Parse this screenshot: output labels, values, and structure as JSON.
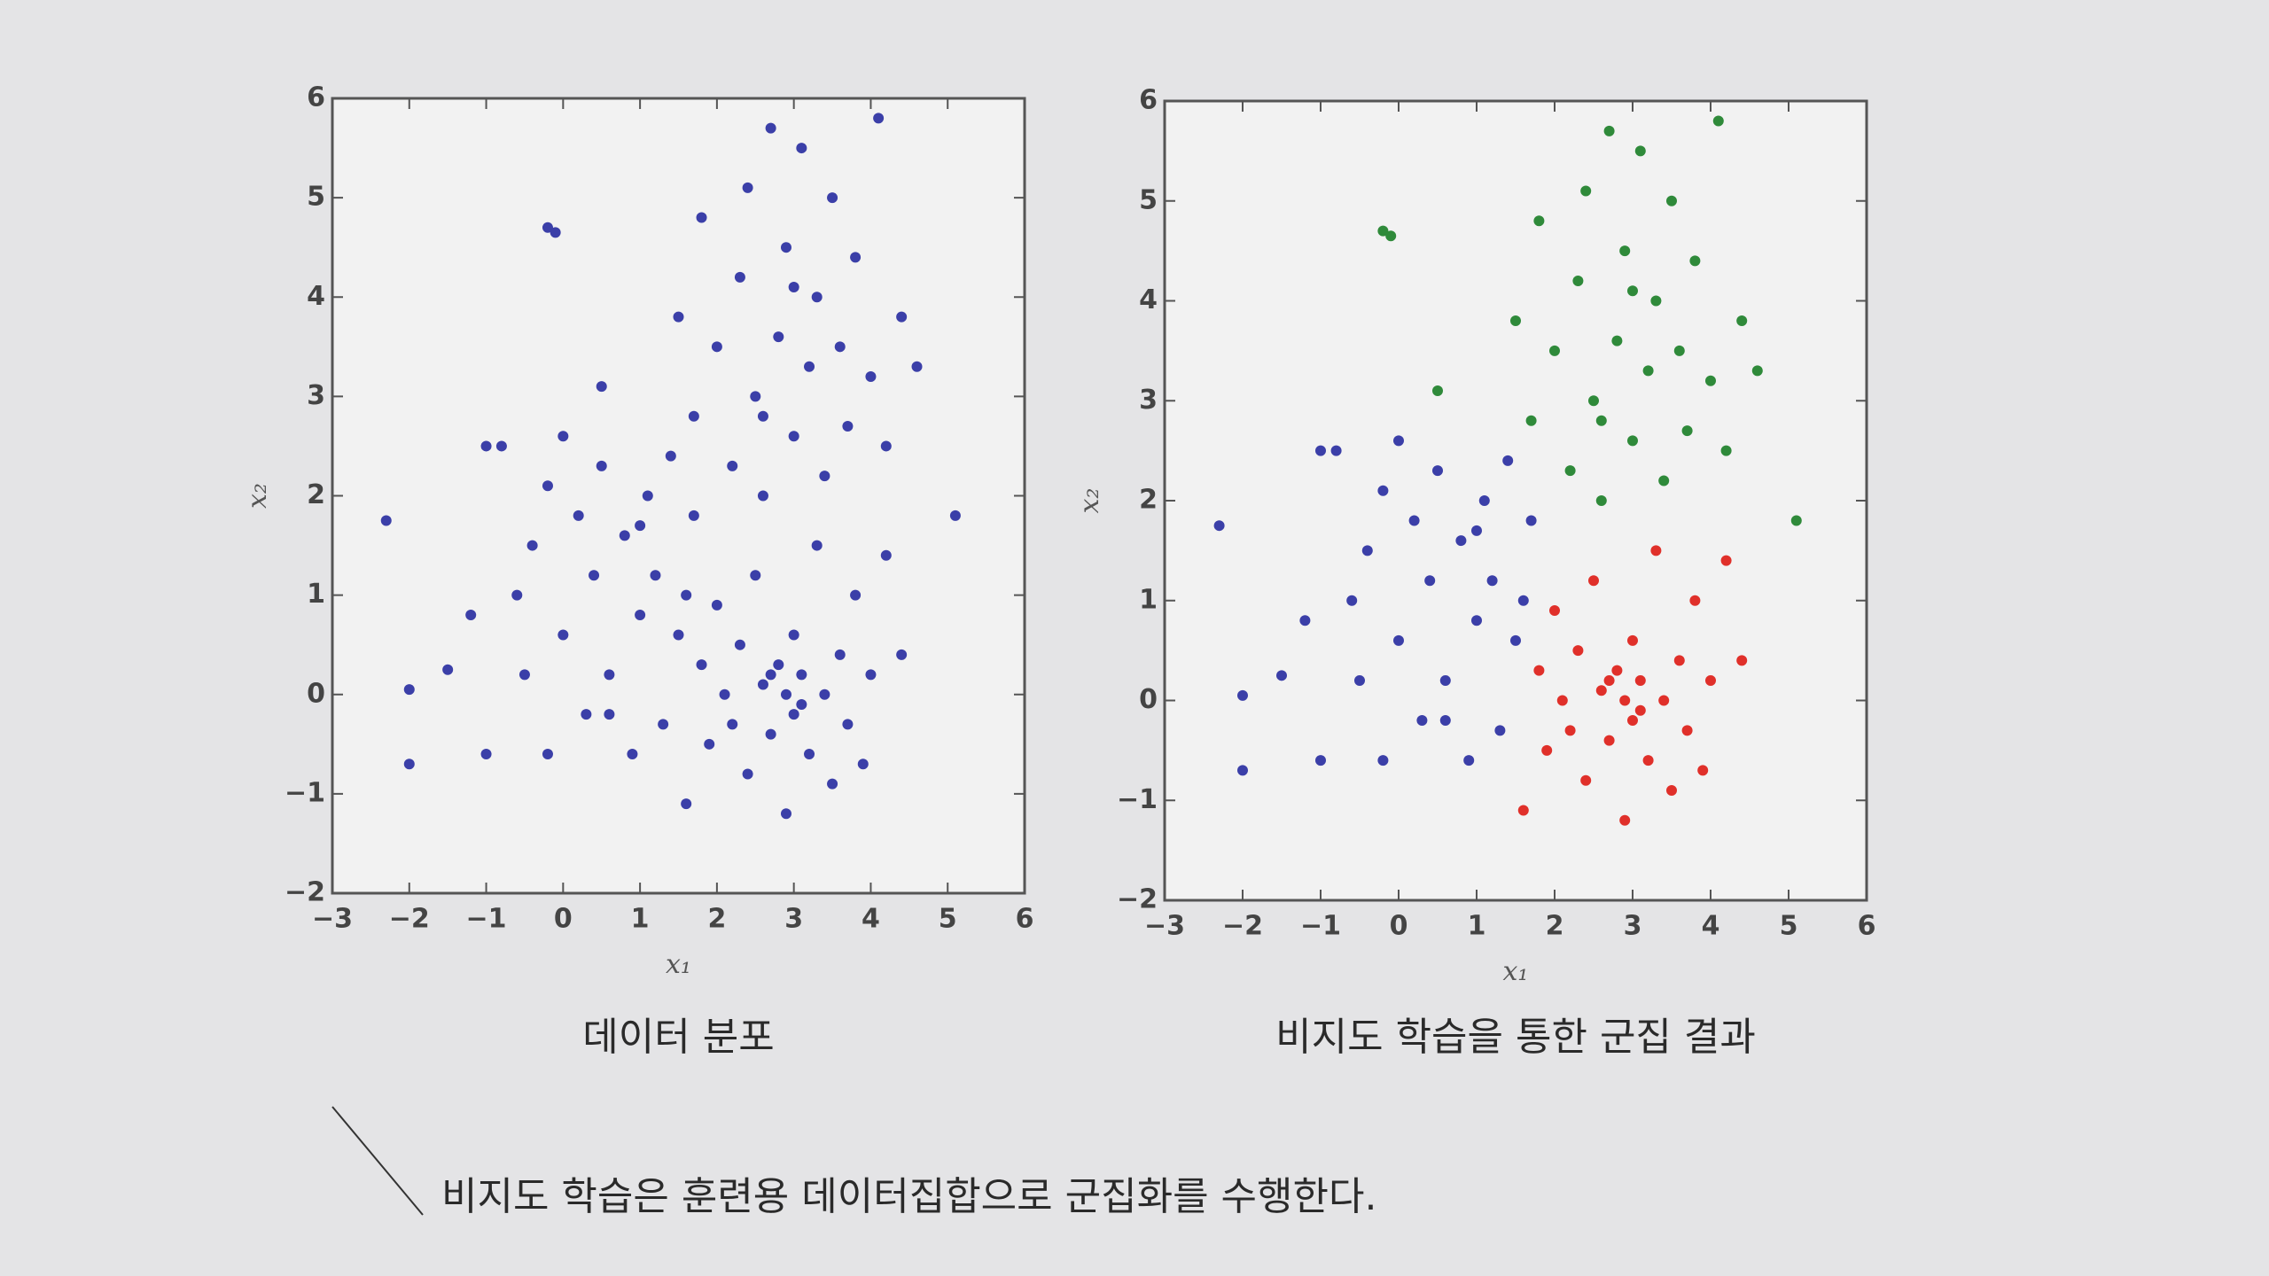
{
  "chart_data": [
    {
      "type": "scatter",
      "title": "데이터 분포",
      "xlabel": "x₁",
      "ylabel": "x₂",
      "xlim": [
        -3,
        6
      ],
      "ylim": [
        -2,
        6
      ],
      "xticks": [
        {
          "value": -3,
          "label": "−3"
        },
        {
          "value": -2,
          "label": "−2"
        },
        {
          "value": -1,
          "label": "−1"
        },
        0,
        1,
        2,
        3,
        4,
        5,
        6
      ],
      "yticks": [
        {
          "value": -2,
          "label": "−2"
        },
        {
          "value": -1,
          "label": "−1"
        },
        0,
        1,
        2,
        3,
        4,
        5,
        6
      ],
      "grid": false,
      "series": [
        {
          "color": "#3b3fa8",
          "x": [
            -2.3,
            -2,
            -2,
            -1.5,
            -1.2,
            -1,
            -1,
            -0.8,
            -0.6,
            -0.5,
            -0.4,
            -0.2,
            -0.2,
            0,
            0,
            0.2,
            0.3,
            0.4,
            0.5,
            0.6,
            0.8,
            0.9,
            1.0,
            1.1,
            1.2,
            1.3,
            1.4,
            1.5,
            1.6,
            1.7,
            0.6,
            1.0,
            -0.2,
            -0.1,
            0.5,
            1.5,
            1.7,
            1.8,
            2.0,
            2.2,
            2.3,
            2.4,
            2.5,
            2.6,
            2.7,
            2.8,
            2.9,
            3.0,
            3.1,
            3.2,
            3.3,
            3.4,
            3.5,
            3.6,
            3.7,
            3.8,
            4.0,
            4.1,
            4.2,
            4.4,
            4.6,
            5.1,
            3.0,
            2.6,
            1.6,
            1.8,
            1.9,
            2.0,
            2.1,
            2.2,
            2.3,
            2.4,
            2.5,
            2.6,
            2.7,
            2.8,
            2.9,
            2.9,
            3.0,
            3.0,
            3.1,
            3.2,
            3.3,
            3.4,
            3.5,
            3.6,
            3.7,
            3.8,
            3.9,
            4.0,
            4.2,
            4.4,
            2.7,
            3.1
          ],
          "values": [
            1.75,
            0.05,
            -0.7,
            0.25,
            0.8,
            2.5,
            -0.6,
            2.5,
            1.0,
            0.2,
            1.5,
            2.1,
            -0.6,
            2.6,
            0.6,
            1.8,
            -0.2,
            1.2,
            2.3,
            0.2,
            1.6,
            -0.6,
            0.8,
            2.0,
            1.2,
            -0.3,
            2.4,
            0.6,
            1.0,
            1.8,
            -0.2,
            1.7,
            4.7,
            4.65,
            3.1,
            3.8,
            2.8,
            4.8,
            3.5,
            2.3,
            4.2,
            5.1,
            3.0,
            2.0,
            5.7,
            3.6,
            4.5,
            2.6,
            5.5,
            3.3,
            4.0,
            2.2,
            5.0,
            3.5,
            2.7,
            4.4,
            3.2,
            5.8,
            2.5,
            3.8,
            3.3,
            1.8,
            4.1,
            2.8,
            -1.1,
            0.3,
            -0.5,
            0.9,
            0,
            -0.3,
            0.5,
            -0.8,
            1.2,
            0.1,
            -0.4,
            0.3,
            -1.2,
            0,
            0.6,
            -0.2,
            0.2,
            -0.6,
            1.5,
            0,
            -0.9,
            0.4,
            -0.3,
            1.0,
            -0.7,
            0.2,
            1.4,
            0.4,
            0.2,
            -0.1
          ]
        }
      ]
    },
    {
      "type": "scatter",
      "title": "비지도 학습을 통한 군집 결과",
      "xlabel": "x₁",
      "ylabel": "x₂",
      "xlim": [
        -3,
        6
      ],
      "ylim": [
        -2,
        6
      ],
      "xticks": [
        {
          "value": -3,
          "label": "−3"
        },
        {
          "value": -2,
          "label": "−2"
        },
        {
          "value": -1,
          "label": "−1"
        },
        0,
        1,
        2,
        3,
        4,
        5,
        6
      ],
      "yticks": [
        {
          "value": -2,
          "label": "−2"
        },
        {
          "value": -1,
          "label": "−1"
        },
        0,
        1,
        2,
        3,
        4,
        5,
        6
      ],
      "grid": false,
      "series": [
        {
          "color": "#3b3fa8",
          "x": [
            -2.3,
            -2,
            -2,
            -1.5,
            -1.2,
            -1,
            -1,
            -0.8,
            -0.6,
            -0.5,
            -0.4,
            -0.2,
            -0.2,
            0,
            0,
            0.2,
            0.3,
            0.4,
            0.5,
            0.6,
            0.8,
            0.9,
            1.0,
            1.1,
            1.2,
            1.3,
            1.4,
            1.5,
            1.6,
            1.7,
            0.6,
            1.0
          ],
          "values": [
            1.75,
            0.05,
            -0.7,
            0.25,
            0.8,
            2.5,
            -0.6,
            2.5,
            1.0,
            0.2,
            1.5,
            2.1,
            -0.6,
            2.6,
            0.6,
            1.8,
            -0.2,
            1.2,
            2.3,
            0.2,
            1.6,
            -0.6,
            0.8,
            2.0,
            1.2,
            -0.3,
            2.4,
            0.6,
            1.0,
            1.8,
            -0.2,
            1.7
          ]
        },
        {
          "color": "#2f8a3a",
          "x": [
            -0.2,
            -0.1,
            0.5,
            1.5,
            1.7,
            1.8,
            2.0,
            2.2,
            2.3,
            2.4,
            2.5,
            2.6,
            2.7,
            2.8,
            2.9,
            3.0,
            3.1,
            3.2,
            3.3,
            3.4,
            3.5,
            3.6,
            3.7,
            3.8,
            4.0,
            4.1,
            4.2,
            4.4,
            4.6,
            5.1,
            3.0,
            2.6
          ],
          "values": [
            4.7,
            4.65,
            3.1,
            3.8,
            2.8,
            4.8,
            3.5,
            2.3,
            4.2,
            5.1,
            3.0,
            2.0,
            5.7,
            3.6,
            4.5,
            2.6,
            5.5,
            3.3,
            4.0,
            2.2,
            5.0,
            3.5,
            2.7,
            4.4,
            3.2,
            5.8,
            2.5,
            3.8,
            3.3,
            1.8,
            4.1,
            2.8
          ]
        },
        {
          "color": "#e0302a",
          "x": [
            1.6,
            1.8,
            1.9,
            2.0,
            2.1,
            2.2,
            2.3,
            2.4,
            2.5,
            2.6,
            2.7,
            2.8,
            2.9,
            2.9,
            3.0,
            3.0,
            3.1,
            3.2,
            3.3,
            3.4,
            3.5,
            3.6,
            3.7,
            3.8,
            3.9,
            4.0,
            4.2,
            4.4,
            2.7,
            3.1
          ],
          "values": [
            -1.1,
            0.3,
            -0.5,
            0.9,
            0,
            -0.3,
            0.5,
            -0.8,
            1.2,
            0.1,
            -0.4,
            0.3,
            -1.2,
            0,
            0.6,
            -0.2,
            0.2,
            -0.6,
            1.5,
            0,
            -0.9,
            0.4,
            -0.3,
            1.0,
            -0.7,
            0.2,
            1.4,
            0.4,
            0.2,
            -0.1
          ]
        }
      ]
    }
  ],
  "footnote": "비지도 학습은 훈련용 데이터집합으로 군집화를 수행한다."
}
